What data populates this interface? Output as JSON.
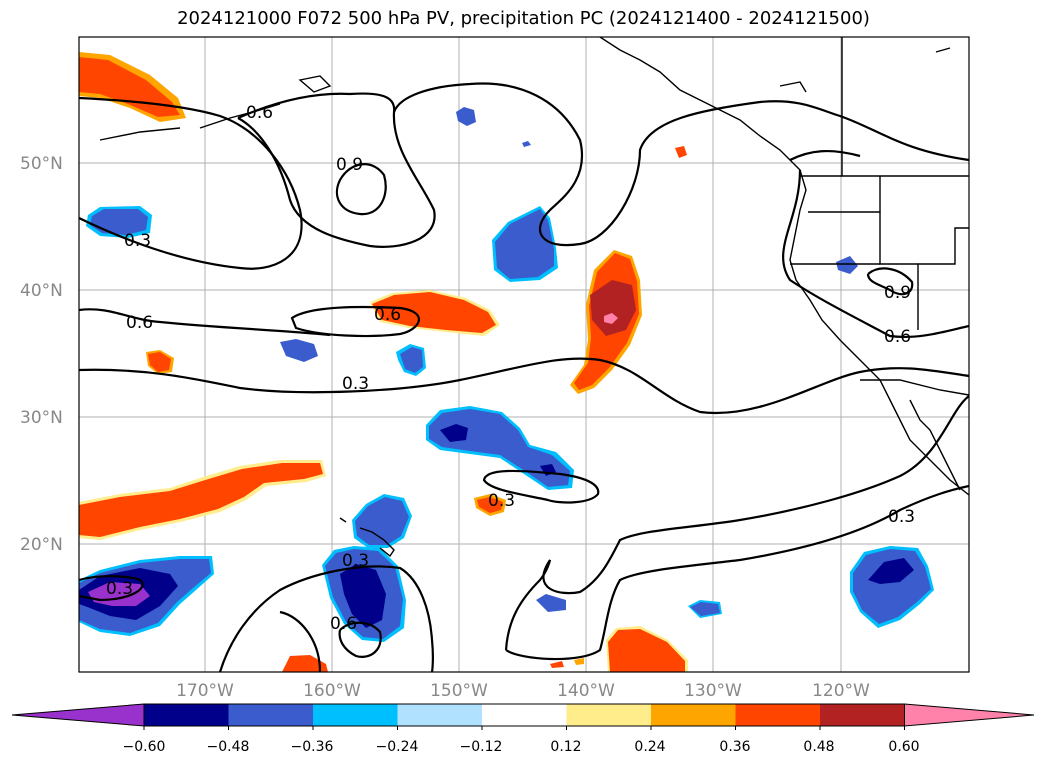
{
  "title": "2024121000 F072 500 hPa PV, precipitation PC (2024121400 - 2024121500)",
  "map": {
    "lat_labels": [
      "50°N",
      "40°N",
      "30°N",
      "20°N"
    ],
    "lon_labels": [
      "170°W",
      "160°W",
      "150°W",
      "140°W",
      "130°W",
      "120°W"
    ],
    "contour_labels": [
      "0.6",
      "0.9",
      "0.3",
      "0.6",
      "0.6",
      "0.3",
      "0.3",
      "0.3",
      "0.6",
      "0.3",
      "0.9",
      "0.6",
      "0.3",
      "0.3"
    ]
  },
  "colorbar": {
    "ticks": [
      "−0.60",
      "−0.48",
      "−0.36",
      "−0.24",
      "−0.12",
      "0.12",
      "0.24",
      "0.36",
      "0.48",
      "0.60"
    ],
    "colors": [
      "#9932cc",
      "#00008b",
      "#3a5ccd",
      "#00bfff",
      "#b0e2ff",
      "#ffffff",
      "#ffec8b",
      "#ffa500",
      "#ff4500",
      "#b22222",
      "#ff82ab"
    ]
  }
}
